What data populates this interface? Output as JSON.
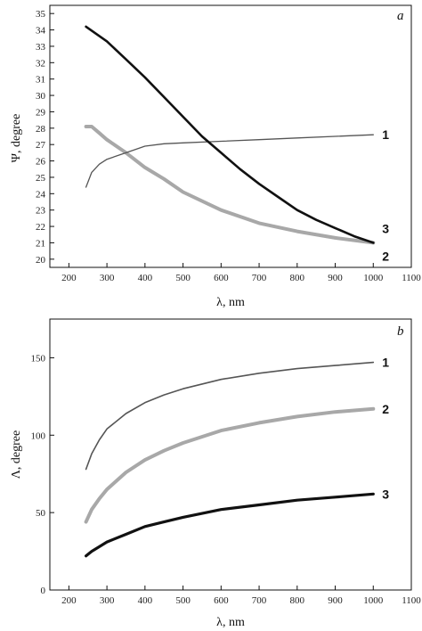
{
  "chart_data": [
    {
      "type": "line",
      "panel": "a",
      "title": "",
      "xlabel": "λ, nm",
      "ylabel": "Ψ, degree",
      "xlim": [
        150,
        1100
      ],
      "ylim": [
        19.5,
        35.5
      ],
      "xticks": [
        "200",
        "300",
        "400",
        "500",
        "600",
        "700",
        "800",
        "900",
        "1000",
        "1100"
      ],
      "yticks": [
        "20",
        "21",
        "22",
        "23",
        "24",
        "25",
        "26",
        "27",
        "28",
        "29",
        "30",
        "31",
        "32",
        "33",
        "34",
        "35"
      ],
      "series": [
        {
          "label": "1",
          "color": "#555555",
          "x": [
            245,
            260,
            280,
            300,
            350,
            400,
            450,
            500,
            600,
            700,
            800,
            900,
            1000
          ],
          "y": [
            24.4,
            25.3,
            25.8,
            26.1,
            26.5,
            26.9,
            27.05,
            27.1,
            27.2,
            27.3,
            27.4,
            27.5,
            27.6
          ]
        },
        {
          "label": "2",
          "color": "#a8a8a8",
          "x": [
            245,
            260,
            280,
            300,
            350,
            400,
            450,
            500,
            600,
            700,
            800,
            900,
            1000
          ],
          "y": [
            28.1,
            28.1,
            27.7,
            27.3,
            26.5,
            25.6,
            24.9,
            24.1,
            23.0,
            22.2,
            21.7,
            21.3,
            21.0
          ]
        },
        {
          "label": "3",
          "color": "#111111",
          "x": [
            245,
            300,
            350,
            400,
            450,
            500,
            550,
            600,
            650,
            700,
            750,
            800,
            850,
            900,
            950,
            1000
          ],
          "y": [
            34.2,
            33.3,
            32.2,
            31.1,
            29.9,
            28.7,
            27.5,
            26.5,
            25.5,
            24.6,
            23.8,
            23.0,
            22.4,
            21.9,
            21.4,
            21.0
          ]
        }
      ]
    },
    {
      "type": "line",
      "panel": "b",
      "title": "",
      "xlabel": "λ, nm",
      "ylabel": "Λ, degree",
      "xlim": [
        150,
        1100
      ],
      "ylim": [
        0,
        175
      ],
      "xticks": [
        "200",
        "300",
        "400",
        "500",
        "600",
        "700",
        "800",
        "900",
        "1000",
        "1100"
      ],
      "yticks": [
        "0",
        "50",
        "100",
        "150"
      ],
      "series": [
        {
          "label": "1",
          "color": "#555555",
          "x": [
            245,
            260,
            280,
            300,
            350,
            400,
            450,
            500,
            600,
            700,
            800,
            900,
            1000
          ],
          "y": [
            78,
            88,
            97,
            104,
            114,
            121,
            126,
            130,
            136,
            140,
            143,
            145,
            147
          ]
        },
        {
          "label": "2",
          "color": "#a8a8a8",
          "x": [
            245,
            260,
            280,
            300,
            350,
            400,
            450,
            500,
            600,
            700,
            800,
            900,
            1000
          ],
          "y": [
            44,
            52,
            59,
            65,
            76,
            84,
            90,
            95,
            103,
            108,
            112,
            115,
            117
          ]
        },
        {
          "label": "3",
          "color": "#111111",
          "x": [
            245,
            260,
            280,
            300,
            350,
            400,
            450,
            500,
            600,
            700,
            800,
            900,
            1000
          ],
          "y": [
            22,
            25,
            28,
            31,
            36,
            41,
            44,
            47,
            52,
            55,
            58,
            60,
            62
          ]
        }
      ]
    }
  ]
}
